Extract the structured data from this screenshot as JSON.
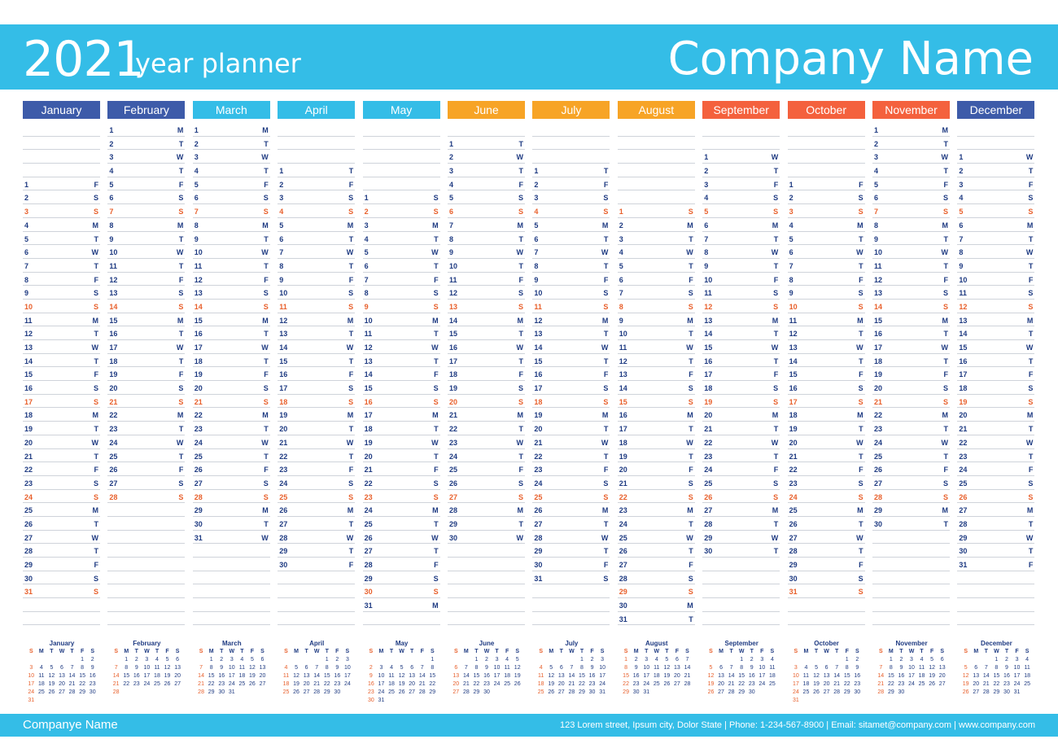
{
  "header": {
    "year": "2021",
    "subtitle": "year planner",
    "company": "Company Name"
  },
  "footer": {
    "company": "Companye Name",
    "info": "123 Lorem street, Ipsum city, Dolor State  |  Phone: 1-234-567-8900  |  Email: sitamet@company.com  |  www.company.com"
  },
  "colors": {
    "header": "#34bde7",
    "winter": "#3d5ba9",
    "spring": "#34bde7",
    "summer": "#f7a426",
    "autumn": "#f4613d",
    "text": "#1f3b82",
    "weekend": "#e8602c"
  },
  "weekday_letters": [
    "S",
    "M",
    "T",
    "W",
    "T",
    "F",
    "S"
  ],
  "months": [
    {
      "name": "January",
      "days": 31,
      "start": 5,
      "color": "#3d5ba9"
    },
    {
      "name": "February",
      "days": 28,
      "start": 1,
      "color": "#3d5ba9"
    },
    {
      "name": "March",
      "days": 31,
      "start": 1,
      "color": "#34bde7"
    },
    {
      "name": "April",
      "days": 30,
      "start": 4,
      "color": "#34bde7"
    },
    {
      "name": "May",
      "days": 31,
      "start": 6,
      "color": "#34bde7"
    },
    {
      "name": "June",
      "days": 30,
      "start": 2,
      "color": "#f7a426"
    },
    {
      "name": "July",
      "days": 31,
      "start": 4,
      "color": "#f7a426"
    },
    {
      "name": "August",
      "days": 31,
      "start": 0,
      "color": "#f7a426"
    },
    {
      "name": "September",
      "days": 30,
      "start": 3,
      "color": "#f4613d"
    },
    {
      "name": "October",
      "days": 31,
      "start": 5,
      "color": "#f4613d"
    },
    {
      "name": "November",
      "days": 30,
      "start": 1,
      "color": "#f4613d"
    },
    {
      "name": "December",
      "days": 31,
      "start": 3,
      "color": "#3d5ba9"
    }
  ]
}
